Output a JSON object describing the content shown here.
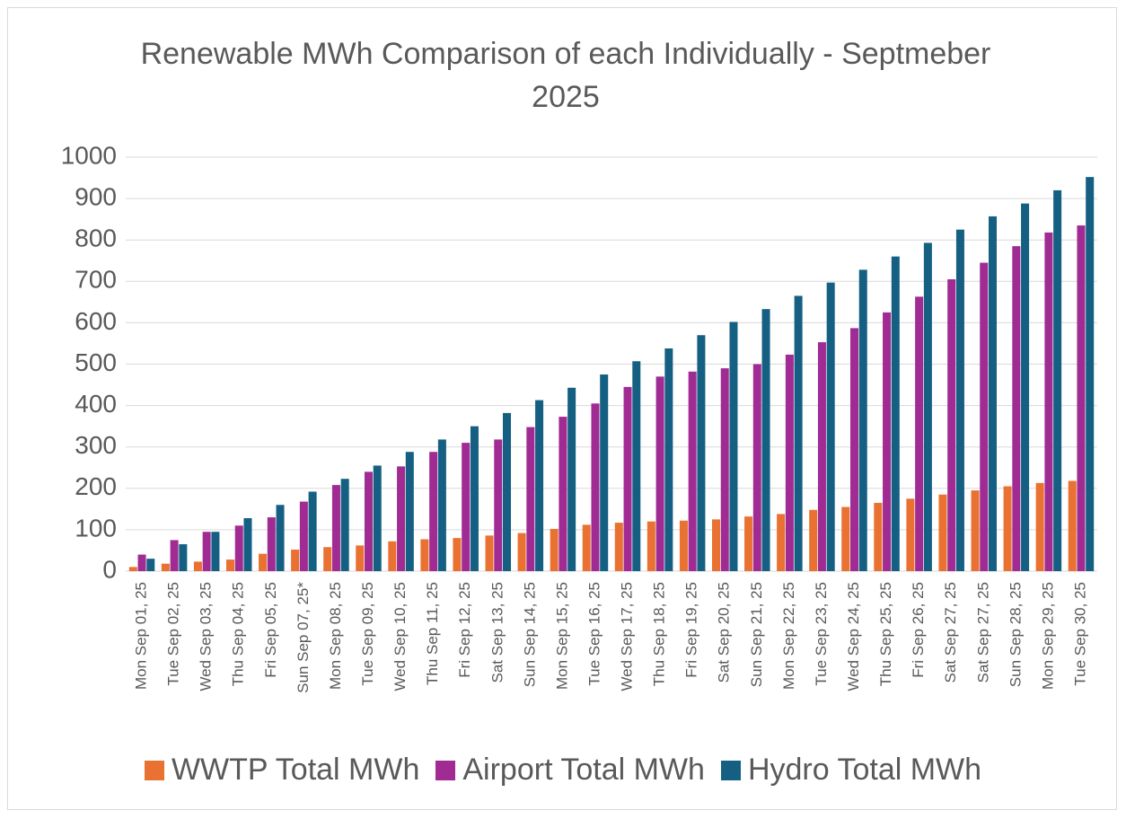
{
  "chart_data": {
    "type": "bar",
    "title": "Renewable MWh Comparison of each Individually - Septmeber 2025",
    "categories": [
      "Mon Sep 01, 25",
      "Tue Sep 02, 25",
      "Wed Sep 03, 25",
      "Thu Sep 04, 25",
      "Fri Sep 05, 25",
      "Sun Sep 07, 25*",
      "Mon Sep 08, 25",
      "Tue Sep 09, 25",
      "Wed Sep 10, 25",
      "Thu Sep 11, 25",
      "Fri Sep 12, 25",
      "Sat Sep 13, 25",
      "Sun Sep 14, 25",
      "Mon Sep 15, 25",
      "Tue Sep 16, 25",
      "Wed Sep 17, 25",
      "Thu Sep 18, 25",
      "Fri Sep 19, 25",
      "Sat Sep 20, 25",
      "Sun Sep 21, 25",
      "Mon Sep 22, 25",
      "Tue Sep 23, 25",
      "Wed Sep 24, 25",
      "Thu Sep 25, 25",
      "Fri Sep 26, 25",
      "Sat Sep 27, 25",
      "Sat Sep 27, 25",
      "Sun Sep 28, 25",
      "Mon Sep 29, 25",
      "Tue Sep 30, 25"
    ],
    "series": [
      {
        "name": "WWTP Total MWh",
        "color": "#e97132",
        "values": [
          10,
          18,
          23,
          28,
          42,
          52,
          58,
          62,
          72,
          77,
          80,
          86,
          92,
          102,
          112,
          117,
          120,
          122,
          125,
          132,
          138,
          148,
          155,
          165,
          175,
          185,
          195,
          205,
          213,
          218
        ]
      },
      {
        "name": "Airport Total MWh",
        "color": "#a02b93",
        "values": [
          40,
          75,
          95,
          110,
          130,
          168,
          208,
          240,
          253,
          288,
          310,
          318,
          348,
          373,
          405,
          445,
          470,
          482,
          490,
          500,
          523,
          553,
          587,
          625,
          663,
          705,
          745,
          785,
          818,
          835
        ]
      },
      {
        "name": "Hydro Total MWh",
        "color": "#156082",
        "values": [
          30,
          65,
          95,
          128,
          160,
          192,
          223,
          255,
          288,
          318,
          350,
          382,
          413,
          443,
          475,
          507,
          538,
          570,
          602,
          633,
          665,
          697,
          728,
          760,
          793,
          825,
          857,
          888,
          920,
          952
        ]
      }
    ],
    "ylim": [
      0,
      1000
    ],
    "yticks": [
      0,
      100,
      200,
      300,
      400,
      500,
      600,
      700,
      800,
      900,
      1000
    ],
    "grid": true,
    "legend": "bottom"
  }
}
